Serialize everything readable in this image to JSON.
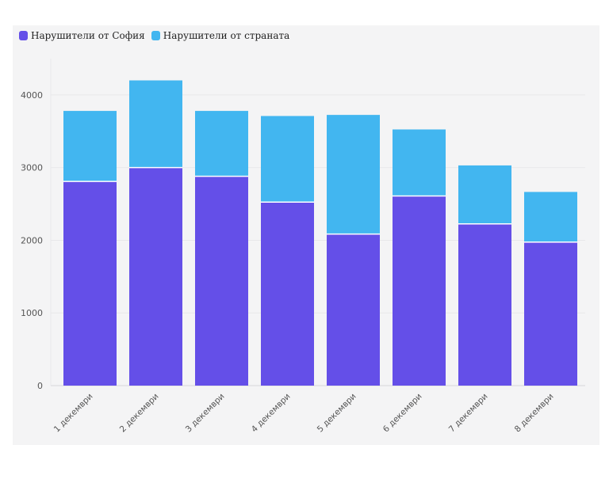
{
  "chart_data": {
    "type": "bar",
    "stacked": true,
    "categories": [
      "1 декември",
      "2 декември",
      "3 декември",
      "4 декември",
      "5 декември",
      "6 декември",
      "7 декември",
      "8 декември"
    ],
    "series": [
      {
        "name": "Нарушители от София",
        "color": "#644fe8",
        "values": [
          2810,
          3000,
          2880,
          2525,
          2085,
          2610,
          2225,
          1975
        ]
      },
      {
        "name": "Нарушители от страната",
        "color": "#42b6f0",
        "values": [
          970,
          1200,
          900,
          1185,
          1640,
          915,
          805,
          690
        ]
      }
    ],
    "yticks": [
      0,
      1000,
      2000,
      3000,
      4000
    ],
    "ylim": [
      0,
      4500
    ],
    "grid": true,
    "legend": "top-left"
  }
}
